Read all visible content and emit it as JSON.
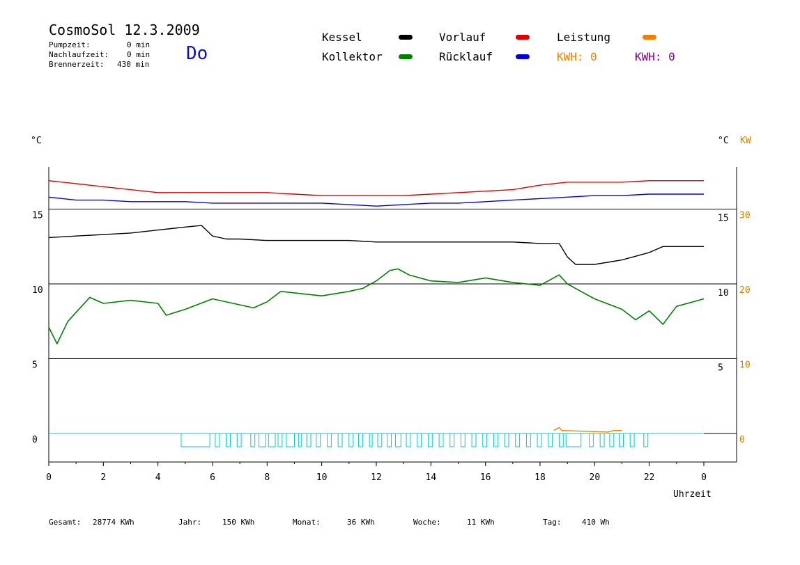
{
  "header": {
    "title": "CosmoSol 12.3.2009",
    "day": "Do",
    "stats": [
      {
        "label": "Pumpzeit:",
        "value": "0 min"
      },
      {
        "label": "Nachlaufzeit:",
        "value": "0 min"
      },
      {
        "label": "Brennerzeit:",
        "value": "430 min"
      }
    ]
  },
  "legend": {
    "kessel": {
      "label": "Kessel",
      "color": "#000000"
    },
    "kollektor": {
      "label": "Kollektor",
      "color": "#008000"
    },
    "vorlauf": {
      "label": "Vorlauf",
      "color": "#e00000"
    },
    "ruecklauf": {
      "label": "Rücklauf",
      "color": "#0000e0"
    },
    "leistung": {
      "label": "Leistung",
      "color": "#f08000"
    },
    "kwh_orange": "KWH: 0",
    "kwh_purple": "KWH: 0"
  },
  "axes": {
    "left_unit": "°C",
    "right_unit_c": "°C",
    "right_unit_kw": "KW",
    "xlabel": "Uhrzeit"
  },
  "footer": [
    {
      "label": "Gesamt:",
      "value": "28774 KWh"
    },
    {
      "label": "Jahr:",
      "value": "150 KWh"
    },
    {
      "label": "Monat:",
      "value": "36 KWh"
    },
    {
      "label": "Woche:",
      "value": "11 KWh"
    },
    {
      "label": "Tag:",
      "value": "410 Wh"
    }
  ],
  "chart_data": {
    "type": "line",
    "x_ticks": [
      "0",
      "2",
      "4",
      "6",
      "8",
      "10",
      "12",
      "14",
      "16",
      "18",
      "20",
      "22",
      "0"
    ],
    "y_left_ticks": [
      0,
      5,
      10,
      15
    ],
    "y_left_tick_labels": [
      "0",
      "5",
      "10",
      "15"
    ],
    "y_right_c_ticks": [
      5,
      10,
      15
    ],
    "y_right_c_tick_labels": [
      "5",
      "10",
      "15"
    ],
    "y_right_kw_ticks": [
      0,
      10,
      20,
      30
    ],
    "y_right_kw_tick_labels": [
      "0",
      "10",
      "20",
      "30"
    ],
    "xlim": [
      0,
      24
    ],
    "ylim": [
      -1.9,
      17.3
    ],
    "grid": true,
    "series": [
      {
        "name": "Vorlauf",
        "color": "#e00000",
        "x": [
          0,
          1,
          2,
          3,
          4,
          5,
          6,
          7,
          8,
          9,
          10,
          11,
          12,
          13,
          14,
          15,
          16,
          17,
          18,
          19,
          20,
          21,
          22,
          23,
          24
        ],
        "y": [
          16.9,
          16.7,
          16.5,
          16.3,
          16.1,
          16.1,
          16.1,
          16.1,
          16.1,
          16.0,
          15.9,
          15.9,
          15.9,
          15.9,
          16.0,
          16.1,
          16.2,
          16.3,
          16.6,
          16.8,
          16.8,
          16.8,
          16.9,
          16.9,
          16.9
        ]
      },
      {
        "name": "Rücklauf",
        "color": "#0000e0",
        "x": [
          0,
          1,
          2,
          3,
          4,
          5,
          6,
          7,
          8,
          9,
          10,
          11,
          12,
          13,
          14,
          15,
          16,
          17,
          18,
          19,
          20,
          21,
          22,
          23,
          24
        ],
        "y": [
          15.8,
          15.6,
          15.6,
          15.5,
          15.5,
          15.5,
          15.4,
          15.4,
          15.4,
          15.4,
          15.4,
          15.3,
          15.2,
          15.3,
          15.4,
          15.4,
          15.5,
          15.6,
          15.7,
          15.8,
          15.9,
          15.9,
          16.0,
          16.0,
          16.0
        ]
      },
      {
        "name": "Kessel",
        "color": "#000000",
        "x": [
          0,
          1,
          2,
          3,
          4,
          5,
          5.6,
          6,
          6.5,
          7,
          8,
          9,
          10,
          11,
          12,
          13,
          14,
          15,
          16,
          17,
          18,
          18.7,
          19,
          19.3,
          20,
          21,
          22,
          22.5,
          23,
          24
        ],
        "y": [
          13.1,
          13.2,
          13.3,
          13.4,
          13.6,
          13.8,
          13.9,
          13.2,
          13.0,
          13.0,
          12.9,
          12.9,
          12.9,
          12.9,
          12.8,
          12.8,
          12.8,
          12.8,
          12.8,
          12.8,
          12.7,
          12.7,
          11.8,
          11.3,
          11.3,
          11.6,
          12.1,
          12.5,
          12.5,
          12.5
        ]
      },
      {
        "name": "Kollektor",
        "color": "#008000",
        "x": [
          0,
          0.3,
          0.7,
          1.2,
          1.5,
          2,
          3,
          4,
          4.3,
          5,
          6,
          7,
          7.5,
          8,
          8.5,
          9,
          10,
          11,
          11.5,
          12,
          12.5,
          12.8,
          13.2,
          14,
          15,
          16,
          17,
          18,
          18.7,
          19,
          19.5,
          20,
          21,
          21.5,
          22,
          22.5,
          23,
          24
        ],
        "y": [
          7.1,
          6.0,
          7.5,
          8.5,
          9.1,
          8.7,
          8.9,
          8.7,
          7.9,
          8.3,
          9.0,
          8.6,
          8.4,
          8.8,
          9.5,
          9.4,
          9.2,
          9.5,
          9.7,
          10.2,
          10.9,
          11.0,
          10.6,
          10.2,
          10.1,
          10.4,
          10.1,
          9.9,
          10.6,
          10.0,
          9.5,
          9.0,
          8.3,
          7.6,
          8.2,
          7.3,
          8.5,
          9.0
        ]
      },
      {
        "name": "Leistung",
        "color": "#f08000",
        "x": [
          18.5,
          18.7,
          18.8,
          20.5,
          20.7,
          21.0
        ],
        "y": [
          0.2,
          0.4,
          0.2,
          0.1,
          0.2,
          0.2
        ]
      }
    ],
    "pump_pulses": {
      "color": "#00cccc",
      "intervals": [
        [
          4.85,
          5.9
        ],
        [
          6.1,
          6.25
        ],
        [
          6.5,
          6.65
        ],
        [
          6.9,
          7.05
        ],
        [
          7.4,
          7.55
        ],
        [
          7.7,
          7.95
        ],
        [
          8.05,
          8.3
        ],
        [
          8.4,
          8.55
        ],
        [
          8.7,
          9.0
        ],
        [
          9.15,
          9.25
        ],
        [
          9.45,
          9.6
        ],
        [
          9.8,
          9.95
        ],
        [
          10.2,
          10.35
        ],
        [
          10.6,
          10.75
        ],
        [
          11.0,
          11.15
        ],
        [
          11.35,
          11.5
        ],
        [
          11.75,
          11.85
        ],
        [
          12.05,
          12.2
        ],
        [
          12.4,
          12.55
        ],
        [
          12.7,
          12.9
        ],
        [
          13.1,
          13.25
        ],
        [
          13.5,
          13.65
        ],
        [
          13.9,
          14.05
        ],
        [
          14.3,
          14.45
        ],
        [
          14.7,
          14.85
        ],
        [
          15.1,
          15.25
        ],
        [
          15.5,
          15.65
        ],
        [
          15.9,
          16.05
        ],
        [
          16.3,
          16.45
        ],
        [
          16.7,
          16.85
        ],
        [
          17.1,
          17.25
        ],
        [
          17.5,
          17.65
        ],
        [
          17.9,
          18.05
        ],
        [
          18.3,
          18.45
        ],
        [
          18.7,
          18.85
        ],
        [
          18.95,
          19.5
        ],
        [
          19.8,
          19.95
        ],
        [
          20.2,
          20.35
        ],
        [
          20.55,
          20.7
        ],
        [
          20.9,
          21.05
        ],
        [
          21.3,
          21.45
        ],
        [
          21.8,
          21.95
        ]
      ]
    }
  }
}
